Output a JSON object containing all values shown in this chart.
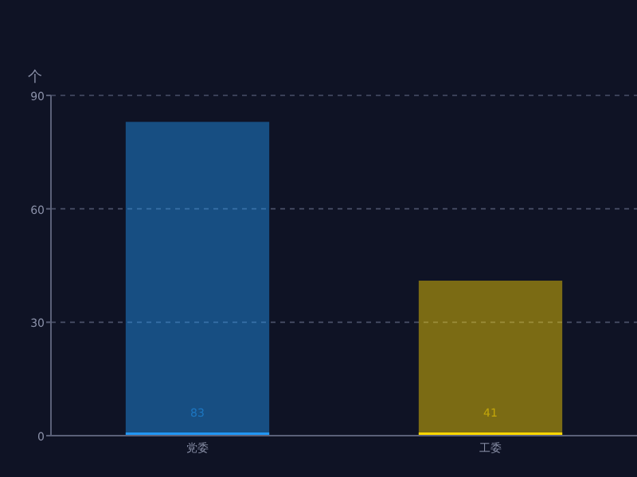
{
  "chart_data": {
    "type": "bar",
    "ylabel": "个",
    "categories": [
      "党委",
      "工委"
    ],
    "values": [
      83,
      41
    ],
    "colors": [
      "#2196f3",
      "#ffd700"
    ],
    "ylim": [
      0,
      90
    ],
    "yticks": [
      0,
      30,
      60,
      90
    ],
    "grid": "y",
    "data_labels": true
  }
}
